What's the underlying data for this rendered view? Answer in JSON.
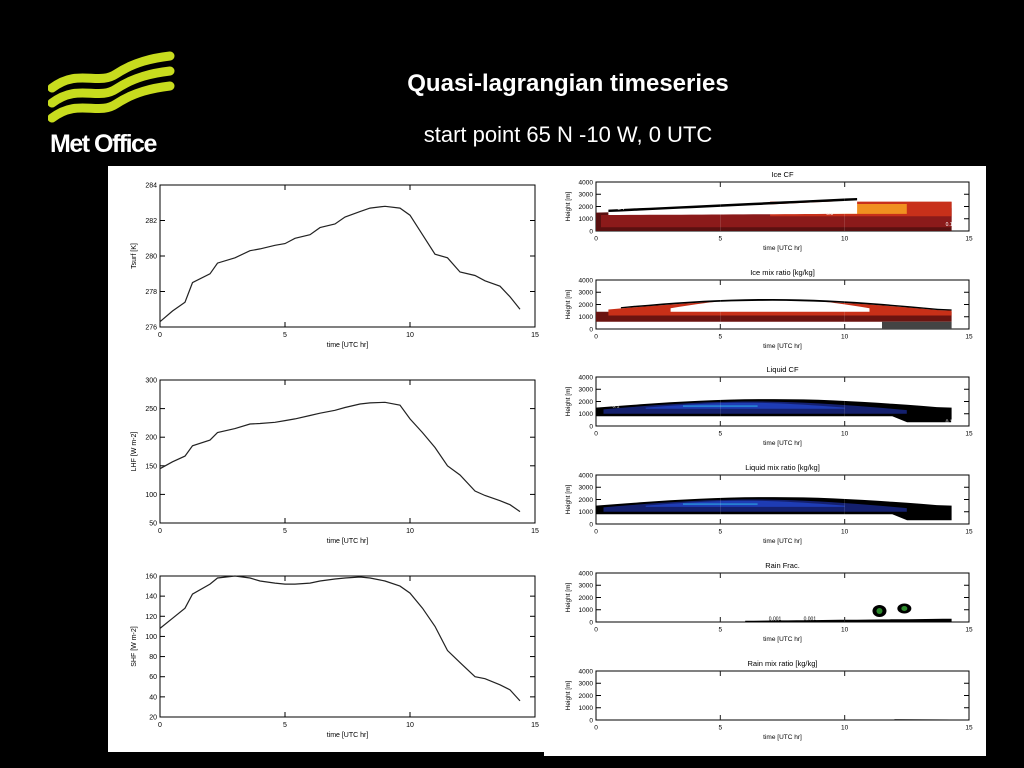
{
  "header": {
    "logo_text": "Met Office",
    "title": "Quasi-lagrangian timeseries",
    "subtitle": "start point 65 N -10 W, 0 UTC"
  },
  "colors": {
    "background": "#000000",
    "logo_green": "#c8dc1e",
    "panel": "#ffffff",
    "line": "#222222"
  },
  "chart_data": [
    {
      "type": "line",
      "title": "",
      "xlabel": "time [UTC hr]",
      "ylabel": "Tsurf [K]",
      "xlim": [
        0,
        15
      ],
      "ylim": [
        276,
        284
      ],
      "xticks": [
        0,
        5,
        10,
        15
      ],
      "yticks": [
        276,
        278,
        280,
        282,
        284
      ],
      "x": [
        0,
        0.5,
        1,
        1.3,
        2,
        2.3,
        3,
        3.6,
        4,
        4.6,
        5,
        5.4,
        6,
        6.4,
        7,
        7.4,
        8,
        8.4,
        9,
        9.6,
        10,
        10.5,
        11,
        11.5,
        12,
        12.6,
        13,
        13.6,
        14,
        14.4
      ],
      "values": [
        276.3,
        276.9,
        277.4,
        278.5,
        279.0,
        279.6,
        279.9,
        280.3,
        280.4,
        280.6,
        280.7,
        281.0,
        281.2,
        281.6,
        281.8,
        282.2,
        282.5,
        282.7,
        282.8,
        282.7,
        282.3,
        281.2,
        280.1,
        279.9,
        279.1,
        278.9,
        278.6,
        278.3,
        277.7,
        277.0
      ]
    },
    {
      "type": "line",
      "title": "",
      "xlabel": "time [UTC hr]",
      "ylabel": "LHF [W m-2]",
      "xlim": [
        0,
        15
      ],
      "ylim": [
        50,
        300
      ],
      "xticks": [
        0,
        5,
        10,
        15
      ],
      "yticks": [
        50,
        100,
        150,
        200,
        250,
        300
      ],
      "x": [
        0,
        0.5,
        1,
        1.3,
        2,
        2.3,
        3,
        3.6,
        4,
        4.6,
        5,
        5.4,
        6,
        6.4,
        7,
        7.4,
        8,
        8.4,
        9,
        9.6,
        10,
        10.5,
        11,
        11.5,
        12,
        12.6,
        13,
        13.6,
        14,
        14.4
      ],
      "values": [
        145,
        157,
        167,
        185,
        195,
        208,
        215,
        223,
        224,
        226,
        229,
        232,
        238,
        242,
        247,
        252,
        258,
        260,
        261,
        256,
        232,
        208,
        182,
        150,
        134,
        106,
        98,
        89,
        82,
        70
      ]
    },
    {
      "type": "line",
      "title": "",
      "xlabel": "time [UTC hr]",
      "ylabel": "SHF [W m-2]",
      "xlim": [
        0,
        15
      ],
      "ylim": [
        20,
        160
      ],
      "xticks": [
        0,
        5,
        10,
        15
      ],
      "yticks": [
        20,
        40,
        60,
        80,
        100,
        120,
        140,
        160
      ],
      "x": [
        0,
        0.5,
        1,
        1.3,
        2,
        2.3,
        3,
        3.6,
        4,
        4.6,
        5,
        5.4,
        6,
        6.4,
        7,
        7.4,
        8,
        8.4,
        9,
        9.6,
        10,
        10.5,
        11,
        11.5,
        12,
        12.6,
        13,
        13.6,
        14,
        14.4
      ],
      "values": [
        108,
        118,
        128,
        142,
        152,
        158,
        160,
        158,
        155,
        153,
        152,
        152,
        153,
        155,
        157,
        158,
        159,
        158,
        155,
        150,
        143,
        128,
        110,
        86,
        74,
        60,
        58,
        52,
        47,
        36
      ]
    },
    {
      "type": "heatmap",
      "title": "Ice CF",
      "xlabel": "time [UTC hr]",
      "ylabel": "Height [m]",
      "xlim": [
        0,
        15
      ],
      "ylim": [
        0,
        4000
      ],
      "xticks": [
        0,
        5,
        10,
        15
      ],
      "yticks": [
        0,
        1000,
        2000,
        3000,
        4000
      ],
      "contour_labels": [
        "0.1",
        "0.4",
        "0.8",
        "0.1"
      ]
    },
    {
      "type": "heatmap",
      "title": "Ice mix ratio [kg/kg]",
      "xlabel": "time [UTC hr]",
      "ylabel": "Height [m]",
      "xlim": [
        0,
        15
      ],
      "ylim": [
        0,
        4000
      ],
      "xticks": [
        0,
        5,
        10,
        15
      ],
      "yticks": [
        0,
        1000,
        2000,
        3000,
        4000
      ]
    },
    {
      "type": "heatmap",
      "title": "Liquid CF",
      "xlabel": "time [UTC hr]",
      "ylabel": "Height [m]",
      "xlim": [
        0,
        15
      ],
      "ylim": [
        0,
        4000
      ],
      "xticks": [
        0,
        5,
        10,
        15
      ],
      "yticks": [
        0,
        1000,
        2000,
        3000,
        4000
      ],
      "contour_labels": [
        "0.1",
        "0.1",
        "0.1"
      ]
    },
    {
      "type": "heatmap",
      "title": "Liquid mix ratio [kg/kg]",
      "xlabel": "time [UTC hr]",
      "ylabel": "Height [m]",
      "xlim": [
        0,
        15
      ],
      "ylim": [
        0,
        4000
      ],
      "xticks": [
        0,
        5,
        10,
        15
      ],
      "yticks": [
        0,
        1000,
        2000,
        3000,
        4000
      ]
    },
    {
      "type": "heatmap",
      "title": "Rain Frac.",
      "xlabel": "time [UTC hr]",
      "ylabel": "Height [m]",
      "xlim": [
        0,
        15
      ],
      "ylim": [
        0,
        4000
      ],
      "xticks": [
        0,
        5,
        10,
        15
      ],
      "yticks": [
        0,
        1000,
        2000,
        3000,
        4000
      ],
      "contour_labels": [
        "0.001",
        "0.001"
      ]
    },
    {
      "type": "heatmap",
      "title": "Rain mix ratio [kg/kg]",
      "xlabel": "time [UTC hr]",
      "ylabel": "Height [m]",
      "xlim": [
        0,
        15
      ],
      "ylim": [
        0,
        4000
      ],
      "xticks": [
        0,
        5,
        10,
        15
      ],
      "yticks": [
        0,
        1000,
        2000,
        3000,
        4000
      ]
    }
  ]
}
